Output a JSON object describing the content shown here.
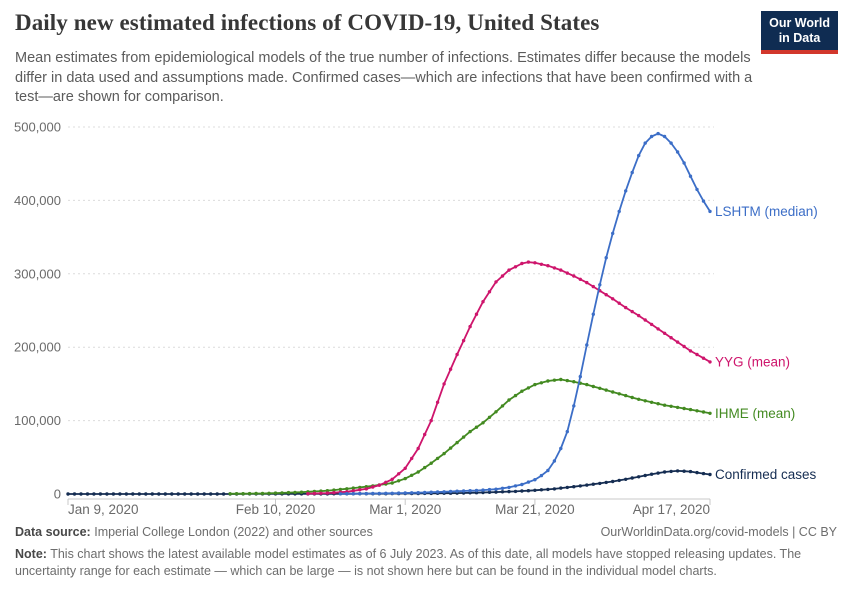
{
  "header": {
    "title": "Daily new estimated infections of COVID-19, United States",
    "subtitle": "Mean estimates from epidemiological models of the true number of infections. Estimates differ because the models differ in data used and assumptions made. Confirmed cases—which are infections that have been confirmed with a test—are shown for comparison."
  },
  "logo": {
    "line1": "Our World",
    "line2": "in Data",
    "bg_color": "#0f2c52",
    "bar_color": "#d2372c"
  },
  "chart_data": {
    "type": "line",
    "title": "Daily new estimated infections of COVID-19, United States",
    "xlabel": "",
    "ylabel": "",
    "grid": "dashed-horizontal",
    "legend_position": "right-of-line-ends",
    "x_axis": {
      "day0_date": "Jan 9, 2020",
      "day_max": 99,
      "ticks": [
        {
          "day": 0,
          "label": "Jan 9, 2020"
        },
        {
          "day": 32,
          "label": "Feb 10, 2020"
        },
        {
          "day": 52,
          "label": "Mar 1, 2020"
        },
        {
          "day": 72,
          "label": "Mar 21, 2020"
        },
        {
          "day": 99,
          "label": "Apr 17, 2020"
        }
      ]
    },
    "y_axis": {
      "min": 0,
      "max": 500000,
      "ticks": [
        0,
        100000,
        200000,
        300000,
        400000,
        500000
      ],
      "tick_labels": [
        "0",
        "100,000",
        "200,000",
        "300,000",
        "400,000",
        "500,000"
      ]
    },
    "series": [
      {
        "id": "confirmed",
        "name": "Confirmed cases",
        "color": "#152d52",
        "points": [
          [
            0,
            0
          ],
          [
            10,
            0
          ],
          [
            20,
            0
          ],
          [
            30,
            100
          ],
          [
            40,
            200
          ],
          [
            50,
            500
          ],
          [
            55,
            800
          ],
          [
            60,
            1200
          ],
          [
            63,
            1800
          ],
          [
            66,
            2600
          ],
          [
            69,
            3600
          ],
          [
            72,
            5000
          ],
          [
            75,
            7000
          ],
          [
            79,
            11000
          ],
          [
            82,
            14500
          ],
          [
            84,
            17000
          ],
          [
            86,
            20000
          ],
          [
            88,
            23500
          ],
          [
            90,
            27000
          ],
          [
            92,
            30000
          ],
          [
            94,
            31500
          ],
          [
            96,
            30500
          ],
          [
            99,
            26500
          ]
        ]
      },
      {
        "id": "ihme",
        "name": "IHME (mean)",
        "color": "#438a21",
        "points": [
          [
            25,
            300
          ],
          [
            30,
            700
          ],
          [
            32,
            1200
          ],
          [
            36,
            2500
          ],
          [
            40,
            4500
          ],
          [
            44,
            8000
          ],
          [
            47,
            11000
          ],
          [
            50,
            15000
          ],
          [
            52,
            21000
          ],
          [
            54,
            30000
          ],
          [
            56,
            42000
          ],
          [
            58,
            55000
          ],
          [
            60,
            70000
          ],
          [
            62,
            85000
          ],
          [
            64,
            97000
          ],
          [
            66,
            112000
          ],
          [
            68,
            128000
          ],
          [
            70,
            140000
          ],
          [
            72,
            149000
          ],
          [
            74,
            154000
          ],
          [
            76,
            156000
          ],
          [
            78,
            153000
          ],
          [
            80,
            149000
          ],
          [
            82,
            144000
          ],
          [
            84,
            139000
          ],
          [
            86,
            134000
          ],
          [
            88,
            129000
          ],
          [
            90,
            125000
          ],
          [
            92,
            121000
          ],
          [
            94,
            118000
          ],
          [
            96,
            115000
          ],
          [
            99,
            110000
          ]
        ]
      },
      {
        "id": "yyg",
        "name": "YYG (mean)",
        "color": "#ce156c",
        "points": [
          [
            37,
            400
          ],
          [
            40,
            1200
          ],
          [
            43,
            3000
          ],
          [
            46,
            7000
          ],
          [
            48,
            12000
          ],
          [
            50,
            20000
          ],
          [
            52,
            35000
          ],
          [
            54,
            62000
          ],
          [
            56,
            100000
          ],
          [
            58,
            150000
          ],
          [
            60,
            190000
          ],
          [
            62,
            228000
          ],
          [
            64,
            262000
          ],
          [
            66,
            289000
          ],
          [
            68,
            305000
          ],
          [
            70,
            314000
          ],
          [
            71,
            316000
          ],
          [
            72,
            315000
          ],
          [
            74,
            311000
          ],
          [
            76,
            305000
          ],
          [
            78,
            297000
          ],
          [
            80,
            288000
          ],
          [
            82,
            277000
          ],
          [
            84,
            266000
          ],
          [
            86,
            254000
          ],
          [
            88,
            243000
          ],
          [
            90,
            231000
          ],
          [
            92,
            219000
          ],
          [
            94,
            207000
          ],
          [
            96,
            195000
          ],
          [
            99,
            180000
          ]
        ]
      },
      {
        "id": "lshtm",
        "name": "LSHTM (median)",
        "color": "#3c6ec7",
        "points": [
          [
            42,
            300
          ],
          [
            46,
            600
          ],
          [
            50,
            1000
          ],
          [
            54,
            1800
          ],
          [
            58,
            3000
          ],
          [
            60,
            3800
          ],
          [
            63,
            4800
          ],
          [
            66,
            6500
          ],
          [
            68,
            9000
          ],
          [
            70,
            13000
          ],
          [
            72,
            19500
          ],
          [
            73,
            25000
          ],
          [
            74,
            32000
          ],
          [
            75,
            45000
          ],
          [
            76,
            62000
          ],
          [
            77,
            85000
          ],
          [
            78,
            120000
          ],
          [
            79,
            160000
          ],
          [
            80,
            203000
          ],
          [
            81,
            245000
          ],
          [
            82,
            285000
          ],
          [
            83,
            322000
          ],
          [
            84,
            355000
          ],
          [
            85,
            385000
          ],
          [
            86,
            413000
          ],
          [
            87,
            438000
          ],
          [
            88,
            461000
          ],
          [
            89,
            478000
          ],
          [
            90,
            487000
          ],
          [
            91,
            491000
          ],
          [
            92,
            487000
          ],
          [
            93,
            478000
          ],
          [
            94,
            466000
          ],
          [
            95,
            451000
          ],
          [
            96,
            433000
          ],
          [
            97,
            415000
          ],
          [
            98,
            399000
          ],
          [
            99,
            385000
          ]
        ]
      }
    ]
  },
  "footer": {
    "data_source_label": "Data source:",
    "data_source_text": "Imperial College London (2022) and other sources",
    "attribution": "OurWorldinData.org/covid-models | CC BY",
    "note_label": "Note:",
    "note_text": "This chart shows the latest available model estimates as of 6 July 2023. As of this date, all models have stopped releasing updates. The uncertainty range for each estimate — which can be large — is not shown here but can be found in the individual model charts."
  }
}
